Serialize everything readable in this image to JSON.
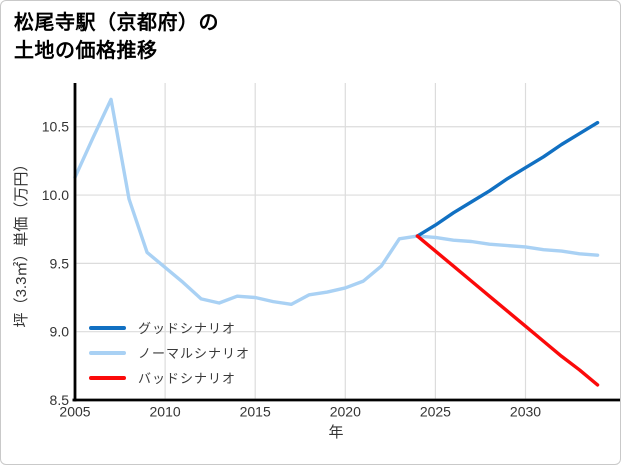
{
  "page": {
    "background": "#ffffff",
    "border_color": "#c9c9c9"
  },
  "title": {
    "line1": "松尾寺駅（京都府）の",
    "line2": "土地の価格推移"
  },
  "axes": {
    "tick_color": "#333333",
    "spine_color": "#000000"
  },
  "chart_data": {
    "type": "line",
    "title": "松尾寺駅（京都府）の土地の価格推移",
    "xlabel": "年",
    "ylabel": "坪（3.3㎡）単価（万円）",
    "xlim": [
      2005,
      2035.3
    ],
    "ylim": [
      8.5,
      10.82
    ],
    "xticks": [
      2005,
      2010,
      2015,
      2020,
      2025,
      2030
    ],
    "yticks": [
      8.5,
      9.0,
      9.5,
      10.0,
      10.5
    ],
    "grid": true,
    "gridcolor": "#dcdcdc",
    "legend_position": "lower-left",
    "series": [
      {
        "name": "グッドシナリオ",
        "color": "#1170c2",
        "width": 3.4,
        "x": [
          2024,
          2025,
          2026,
          2027,
          2028,
          2029,
          2030,
          2031,
          2032,
          2033,
          2034
        ],
        "y": [
          9.7,
          9.78,
          9.87,
          9.95,
          10.03,
          10.12,
          10.2,
          10.28,
          10.37,
          10.45,
          10.53
        ]
      },
      {
        "name": "ノーマルシナリオ",
        "color": "#a9d1f4",
        "width": 3.4,
        "x": [
          2005,
          2006,
          2007,
          2008,
          2009,
          2010,
          2011,
          2012,
          2013,
          2014,
          2015,
          2016,
          2017,
          2018,
          2019,
          2020,
          2021,
          2022,
          2023,
          2024,
          2025,
          2026,
          2027,
          2028,
          2029,
          2030,
          2031,
          2032,
          2033,
          2034
        ],
        "y": [
          10.13,
          10.42,
          10.7,
          9.97,
          9.58,
          9.47,
          9.36,
          9.24,
          9.21,
          9.26,
          9.25,
          9.22,
          9.2,
          9.27,
          9.29,
          9.32,
          9.37,
          9.48,
          9.68,
          9.7,
          9.69,
          9.67,
          9.66,
          9.64,
          9.63,
          9.62,
          9.6,
          9.59,
          9.57,
          9.56
        ]
      },
      {
        "name": "バッドシナリオ",
        "color": "#fb0a0a",
        "width": 3.4,
        "x": [
          2024,
          2025,
          2026,
          2027,
          2028,
          2029,
          2030,
          2031,
          2032,
          2033,
          2034
        ],
        "y": [
          9.7,
          9.59,
          9.48,
          9.37,
          9.26,
          9.15,
          9.04,
          8.93,
          8.82,
          8.72,
          8.61
        ]
      }
    ]
  }
}
